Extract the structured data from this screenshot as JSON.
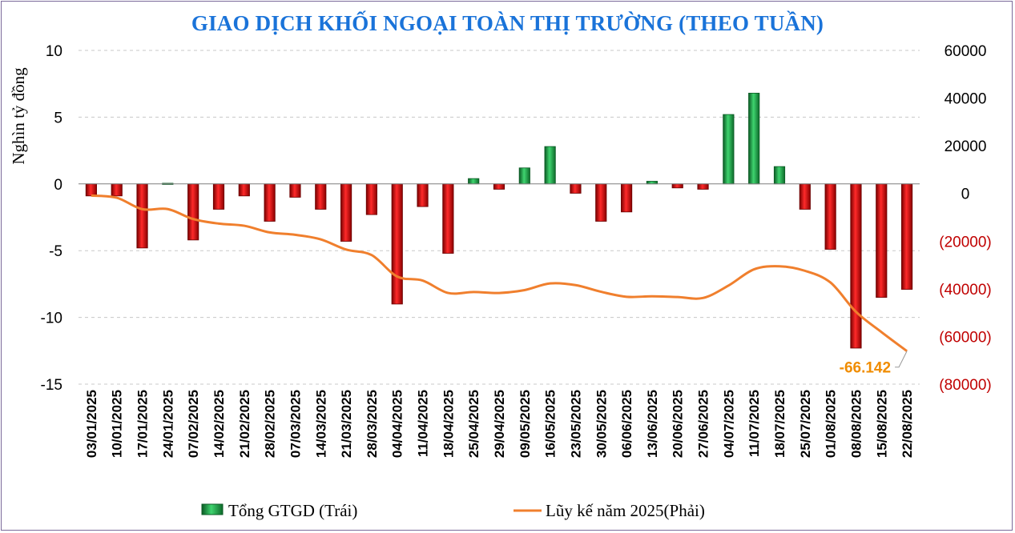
{
  "chart_data": {
    "type": "bar",
    "title": "GIAO DỊCH KHỐI NGOẠI TOÀN THỊ TRƯỜNG (THEO TUẦN)",
    "ylabel": "Nghìn tỷ đồng",
    "ylim": [
      -15,
      10
    ],
    "yticks": [
      "10",
      "5",
      "0",
      "-5",
      "-10",
      "-15"
    ],
    "y2lim": [
      -80000,
      60000
    ],
    "y2ticks": [
      "60000",
      "40000",
      "20000",
      "0",
      "(20000)",
      "(40000)",
      "(60000)",
      "(80000)"
    ],
    "grid": "horizontal-dashed",
    "legend_position": "bottom",
    "categories": [
      "03/01/2025",
      "10/01/2025",
      "17/01/2025",
      "24/01/2025",
      "07/02/2025",
      "14/02/2025",
      "21/02/2025",
      "28/02/2025",
      "07/03/2025",
      "14/03/2025",
      "21/03/2025",
      "28/03/2025",
      "04/04/2025",
      "11/04/2025",
      "18/04/2025",
      "25/04/2025",
      "29/04/2025",
      "09/05/2025",
      "16/05/2025",
      "23/05/2025",
      "30/05/2025",
      "06/06/2025",
      "13/06/2025",
      "20/06/2025",
      "27/06/2025",
      "04/07/2025",
      "11/07/2025",
      "18/07/2025",
      "25/07/2025",
      "01/08/2025",
      "08/08/2025",
      "15/08/2025",
      "22/08/2025"
    ],
    "series": [
      {
        "name": "Tổng GTGD (Trái)",
        "kind": "bar",
        "axis": "left",
        "positive_color": "#1e9a4a",
        "negative_color": "#d81818",
        "values": [
          -0.9,
          -0.9,
          -4.8,
          0.05,
          -4.2,
          -1.9,
          -0.9,
          -2.8,
          -1.0,
          -1.9,
          -4.3,
          -2.3,
          -9.0,
          -1.7,
          -5.2,
          0.4,
          -0.4,
          1.2,
          2.8,
          -0.7,
          -2.8,
          -2.1,
          0.2,
          -0.3,
          -0.4,
          5.2,
          6.8,
          1.3,
          -1.9,
          -4.9,
          -12.3,
          -8.5,
          -7.9
        ]
      },
      {
        "name": "Lũy kế năm 2025(Phải)",
        "kind": "line",
        "axis": "right",
        "color": "#f07f2d",
        "values": [
          -900,
          -1800,
          -6600,
          -6550,
          -10750,
          -12650,
          -13550,
          -16350,
          -17350,
          -19250,
          -23550,
          -25850,
          -34850,
          -36550,
          -41750,
          -41350,
          -41750,
          -40550,
          -37750,
          -38450,
          -41250,
          -43350,
          -43150,
          -43450,
          -43850,
          -38650,
          -31850,
          -30550,
          -32450,
          -37350,
          -49650,
          -58150,
          -66142
        ]
      }
    ],
    "annotation": "-66.142"
  },
  "colors": {
    "title": "#1a73d9",
    "negative_axis_label": "#c00000",
    "annotation": "#f08c00",
    "border": "#7b6a9a"
  }
}
